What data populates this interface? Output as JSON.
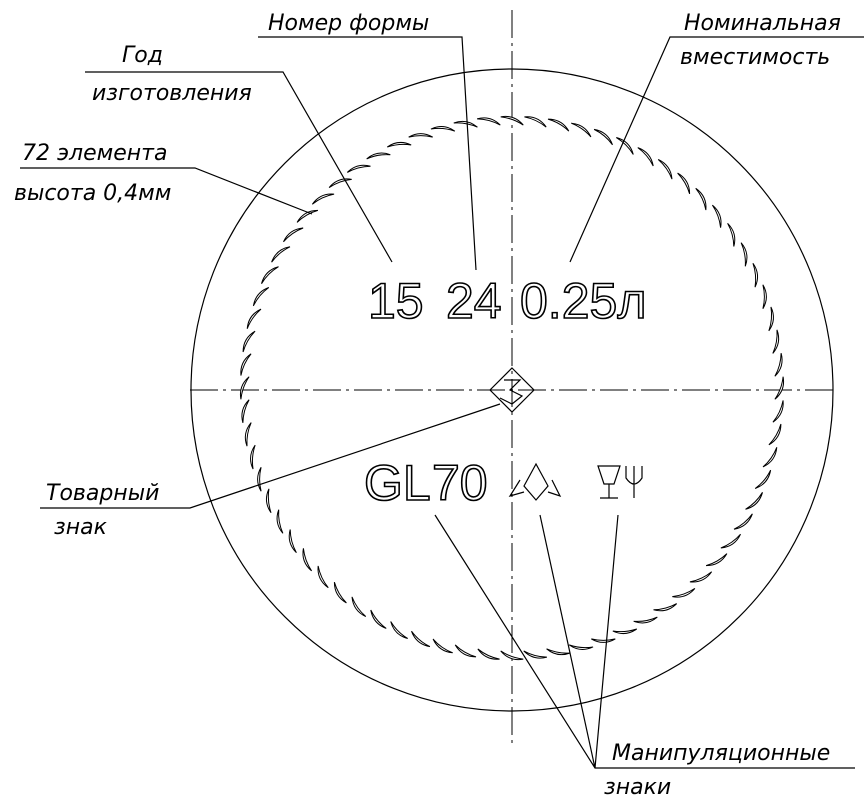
{
  "labels": {
    "form_number": "Номер формы",
    "capacity": [
      "Номинальная",
      "вместимость"
    ],
    "year": [
      "Год",
      "изготовления"
    ],
    "elements": [
      "72 элемента",
      "высота 0,4мм"
    ],
    "trademark": [
      "Товарный",
      "знак"
    ],
    "handling": [
      "Манипуляционные",
      "знаки"
    ]
  },
  "marking": {
    "year": "15",
    "form": "24",
    "volume": "0.25л",
    "gl": "GL",
    "gl_number": "70"
  }
}
